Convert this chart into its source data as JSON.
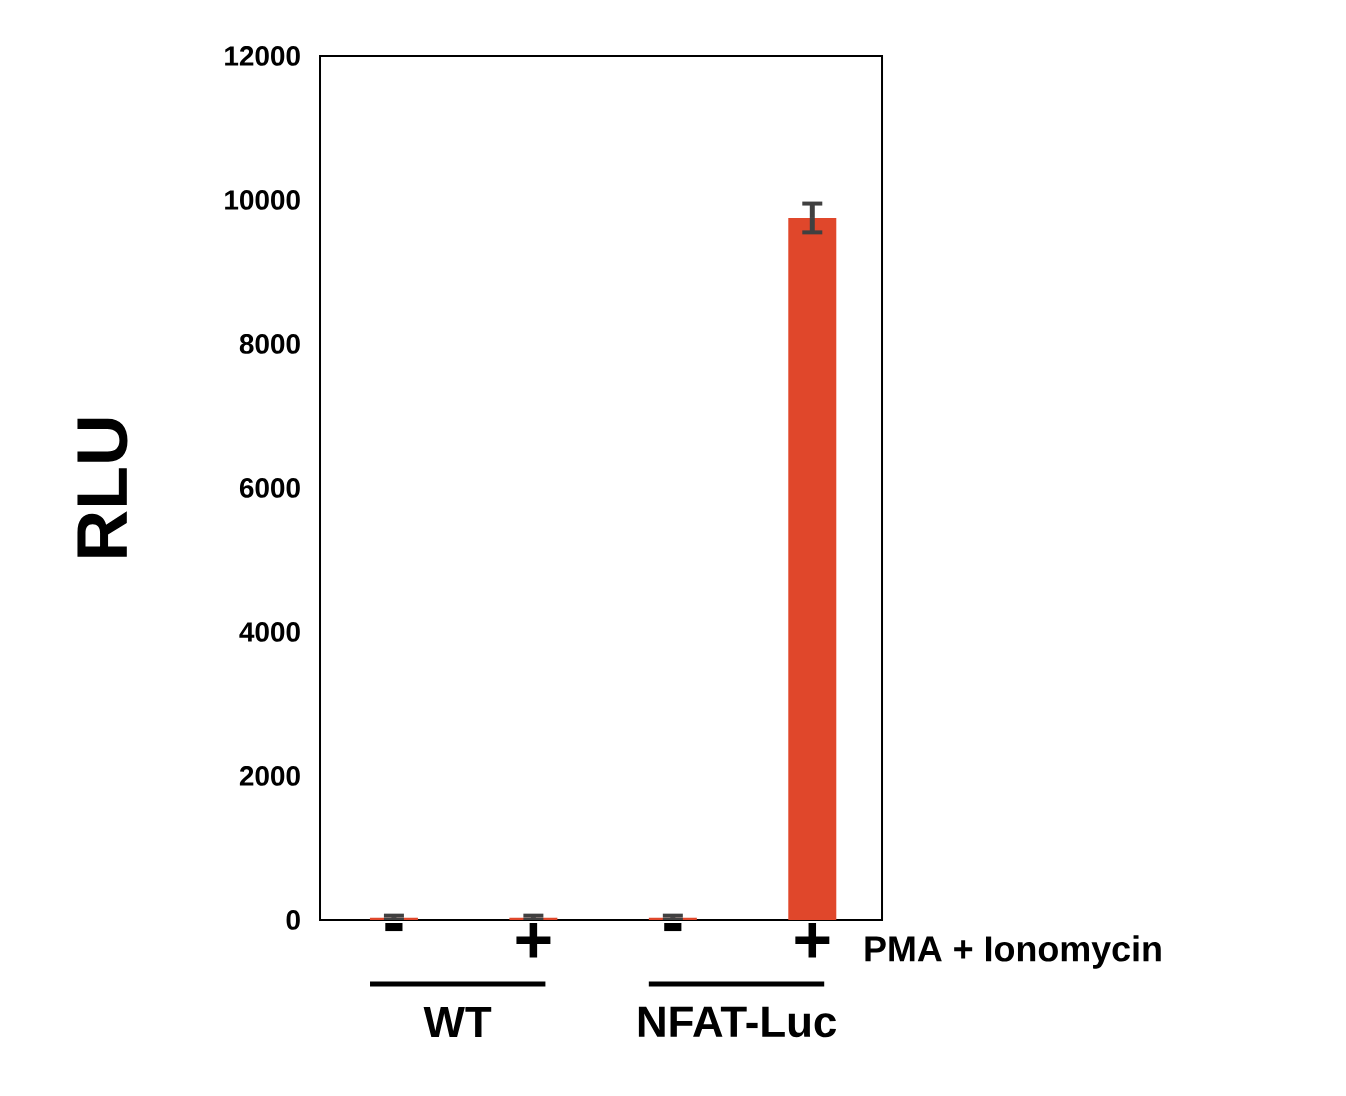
{
  "chart_data": {
    "type": "bar",
    "ylabel": "RLU",
    "xlabel": "PMA + Ionomycin",
    "categories": [
      "-",
      "+",
      "-",
      "+"
    ],
    "values": [
      30,
      30,
      30,
      9750
    ],
    "errors": [
      30,
      30,
      30,
      200
    ],
    "color": "#e0472b",
    "ylim": [
      0,
      12000
    ],
    "yticks": [
      0,
      2000,
      4000,
      6000,
      8000,
      10000,
      12000
    ],
    "annotations": [
      "WT",
      "NFAT-Luc"
    ]
  }
}
